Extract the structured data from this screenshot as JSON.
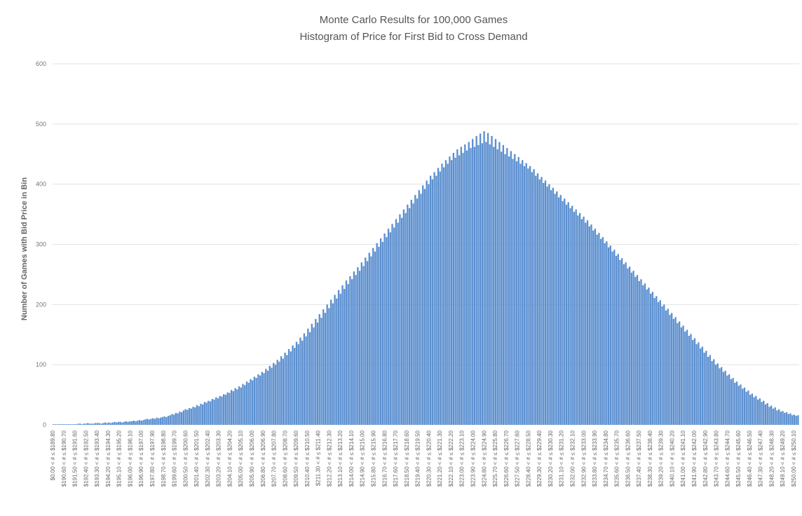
{
  "chart_data": {
    "type": "bar",
    "title": "Monte Carlo Results for 100,000 Games",
    "subtitle": "Histogram of Price for First Bid to Cross Demand",
    "ylabel": "Number of Games with Bid Price in Bin",
    "xlabel": "",
    "ylim": [
      0,
      600
    ],
    "yticks": [
      0,
      100,
      200,
      300,
      400,
      500,
      600
    ],
    "grid": true,
    "legend": "none",
    "bar_color": "#5b8fd0",
    "x_tick_labels": [
      "$0.00 < # ≤ $189.80",
      "$190.60 < # ≤ $190.70",
      "$191.50 < # ≤ $191.60",
      "$192.40 < # ≤ $192.50",
      "$193.30 < # ≤ $193.40",
      "$194.20 < # ≤ $194.30",
      "$195.10 < # ≤ $195.20",
      "$196.00 < # ≤ $196.10",
      "$196.90 < # ≤ $197.00",
      "$197.80 < # ≤ $197.90",
      "$198.70 < # ≤ $198.80",
      "$199.60 < # ≤ $199.70",
      "$200.50 < # ≤ $200.60",
      "$201.40 < # ≤ $201.50",
      "$202.30 < # ≤ $202.40",
      "$203.20 < # ≤ $203.30",
      "$204.10 < # ≤ $204.20",
      "$205.00 < # ≤ $205.10",
      "$205.90 < # ≤ $206.00",
      "$206.80 < # ≤ $206.90",
      "$207.70 < # ≤ $207.80",
      "$208.60 < # ≤ $208.70",
      "$209.50 < # ≤ $209.60",
      "$210.40 < # ≤ $210.50",
      "$211.30 < # ≤ $211.40",
      "$212.20 < # ≤ $212.30",
      "$213.10 < # ≤ $213.20",
      "$214.00 < # ≤ $214.10",
      "$214.90 < # ≤ $215.00",
      "$215.80 < # ≤ $215.90",
      "$216.70 < # ≤ $216.80",
      "$217.60 < # ≤ $217.70",
      "$218.50 < # ≤ $218.60",
      "$219.40 < # ≤ $219.50",
      "$220.30 < # ≤ $220.40",
      "$221.20 < # ≤ $221.30",
      "$222.10 < # ≤ $222.20",
      "$223.00 < # ≤ $223.10",
      "$223.90 < # ≤ $224.00",
      "$224.80 < # ≤ $224.90",
      "$225.70 < # ≤ $225.80",
      "$226.60 < # ≤ $226.70",
      "$227.50 < # ≤ $227.60",
      "$228.40 < # ≤ $228.50",
      "$229.30 < # ≤ $229.40",
      "$230.20 < # ≤ $230.30",
      "$231.10 < # ≤ $231.20",
      "$232.00 < # ≤ $232.10",
      "$232.90 < # ≤ $233.00",
      "$233.80 < # ≤ $233.90",
      "$234.70 < # ≤ $234.80",
      "$235.60 < # ≤ $235.70",
      "$236.50 < # ≤ $236.60",
      "$237.40 < # ≤ $237.50",
      "$238.30 < # ≤ $238.40",
      "$239.20 < # ≤ $239.30",
      "$240.10 < # ≤ $240.20",
      "$241.00 < # ≤ $241.10",
      "$241.90 < # ≤ $242.00",
      "$242.80 < # ≤ $242.90",
      "$243.70 < # ≤ $243.80",
      "$244.60 < # ≤ $244.70",
      "$245.50 < # ≤ $245.60",
      "$246.40 < # ≤ $246.50",
      "$247.30 < # ≤ $247.40",
      "$248.20 < # ≤ $248.30",
      "$249.10 < # ≤ $249.20",
      "$250.00 < # ≤ $250.10"
    ],
    "values": [
      1,
      1,
      1,
      1,
      1,
      1,
      1,
      1,
      1,
      1,
      1,
      1,
      1,
      2,
      2,
      1,
      2,
      2,
      3,
      2,
      2,
      2,
      3,
      3,
      3,
      2,
      3,
      4,
      3,
      4,
      3,
      4,
      5,
      4,
      5,
      5,
      4,
      5,
      6,
      5,
      6,
      6,
      7,
      6,
      7,
      8,
      7,
      8,
      9,
      10,
      9,
      10,
      11,
      10,
      12,
      11,
      12,
      13,
      14,
      13,
      15,
      16,
      18,
      17,
      20,
      19,
      22,
      21,
      24,
      26,
      25,
      28,
      27,
      30,
      29,
      33,
      31,
      35,
      34,
      38,
      37,
      40,
      39,
      43,
      42,
      46,
      44,
      48,
      47,
      51,
      50,
      54,
      53,
      58,
      56,
      61,
      59,
      64,
      62,
      68,
      66,
      72,
      70,
      76,
      74,
      80,
      78,
      84,
      82,
      88,
      86,
      93,
      90,
      98,
      95,
      103,
      100,
      108,
      105,
      114,
      110,
      120,
      116,
      126,
      122,
      132,
      128,
      138,
      134,
      145,
      140,
      152,
      147,
      160,
      154,
      168,
      162,
      176,
      170,
      184,
      178,
      192,
      186,
      200,
      194,
      208,
      202,
      216,
      210,
      224,
      218,
      232,
      226,
      240,
      234,
      247,
      242,
      255,
      249,
      262,
      256,
      270,
      264,
      278,
      272,
      286,
      280,
      294,
      288,
      302,
      296,
      310,
      304,
      318,
      312,
      326,
      320,
      334,
      328,
      342,
      336,
      350,
      344,
      358,
      352,
      366,
      360,
      374,
      368,
      382,
      376,
      390,
      384,
      398,
      392,
      406,
      400,
      414,
      408,
      420,
      414,
      427,
      421,
      434,
      428,
      440,
      434,
      446,
      440,
      452,
      444,
      458,
      448,
      462,
      452,
      466,
      456,
      470,
      460,
      475,
      462,
      480,
      465,
      484,
      468,
      488,
      470,
      485,
      466,
      480,
      462,
      475,
      458,
      470,
      454,
      465,
      450,
      460,
      446,
      455,
      442,
      450,
      438,
      445,
      434,
      440,
      430,
      435,
      426,
      430,
      420,
      425,
      414,
      418,
      408,
      412,
      402,
      406,
      396,
      400,
      390,
      394,
      384,
      388,
      378,
      382,
      372,
      376,
      366,
      370,
      360,
      364,
      354,
      358,
      348,
      352,
      342,
      346,
      336,
      340,
      330,
      333,
      323,
      326,
      316,
      319,
      309,
      312,
      302,
      305,
      295,
      298,
      288,
      291,
      281,
      284,
      274,
      277,
      267,
      270,
      260,
      263,
      253,
      256,
      246,
      249,
      239,
      242,
      232,
      235,
      225,
      228,
      218,
      221,
      211,
      214,
      204,
      207,
      197,
      200,
      190,
      193,
      183,
      186,
      176,
      179,
      169,
      172,
      162,
      165,
      155,
      158,
      148,
      151,
      141,
      144,
      134,
      137,
      127,
      130,
      120,
      123,
      113,
      116,
      106,
      109,
      100,
      102,
      94,
      96,
      88,
      90,
      82,
      84,
      76,
      78,
      70,
      72,
      65,
      67,
      60,
      62,
      55,
      57,
      50,
      52,
      46,
      48,
      42,
      44,
      38,
      40,
      34,
      36,
      30,
      32,
      27,
      29,
      24,
      26,
      22,
      23,
      20,
      21,
      18,
      19,
      16,
      17,
      15,
      16
    ]
  }
}
